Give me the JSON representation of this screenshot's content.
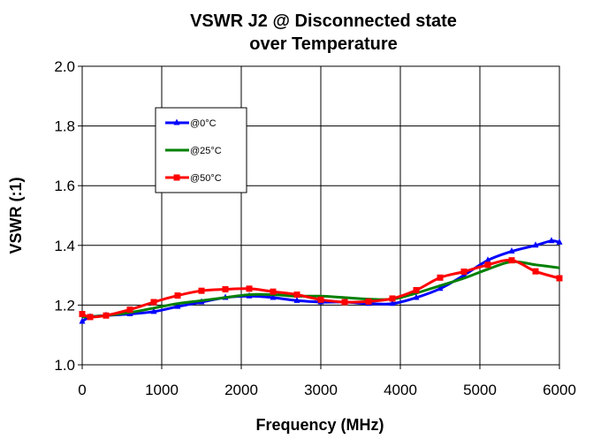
{
  "chart_data": {
    "type": "line",
    "title": [
      "VSWR J2 @ Disconnected state",
      "over Temperature"
    ],
    "xlabel": "Frequency (MHz)",
    "ylabel": "VSWR (:1)",
    "xlim": [
      0,
      6000
    ],
    "ylim": [
      1.0,
      2.0
    ],
    "xticks": [
      0,
      1000,
      2000,
      3000,
      4000,
      5000,
      6000
    ],
    "yticks": [
      "1.0",
      "1.2",
      "1.4",
      "1.6",
      "1.8",
      "2.0"
    ],
    "grid": true,
    "legend_position": "upper-left",
    "series": [
      {
        "name": "@0°C",
        "color": "#0000ff",
        "marker": "triangle",
        "x": [
          0,
          100,
          300,
          600,
          900,
          1200,
          1500,
          1800,
          2100,
          2400,
          2700,
          3000,
          3300,
          3600,
          3900,
          4200,
          4500,
          4800,
          5100,
          5400,
          5700,
          5900,
          6000
        ],
        "y": [
          1.145,
          1.16,
          1.165,
          1.17,
          1.178,
          1.195,
          1.21,
          1.225,
          1.23,
          1.225,
          1.215,
          1.21,
          1.21,
          1.205,
          1.205,
          1.225,
          1.255,
          1.3,
          1.35,
          1.38,
          1.4,
          1.415,
          1.41
        ]
      },
      {
        "name": "@25°C",
        "color": "#008000",
        "marker": "none",
        "x": [
          0,
          300,
          600,
          900,
          1200,
          1500,
          1800,
          2100,
          2400,
          2700,
          3000,
          3300,
          3600,
          3900,
          4200,
          4500,
          4800,
          5100,
          5400,
          5700,
          6000
        ],
        "y": [
          1.16,
          1.165,
          1.175,
          1.19,
          1.205,
          1.215,
          1.225,
          1.235,
          1.235,
          1.23,
          1.23,
          1.225,
          1.22,
          1.22,
          1.24,
          1.265,
          1.29,
          1.32,
          1.345,
          1.335,
          1.325
        ]
      },
      {
        "name": "@50°C",
        "color": "#ff0000",
        "marker": "square",
        "x": [
          0,
          100,
          300,
          600,
          900,
          1200,
          1500,
          1800,
          2100,
          2400,
          2700,
          3000,
          3300,
          3600,
          3900,
          4200,
          4500,
          4800,
          5100,
          5400,
          5700,
          6000
        ],
        "y": [
          1.17,
          1.16,
          1.165,
          1.185,
          1.21,
          1.232,
          1.248,
          1.253,
          1.255,
          1.245,
          1.235,
          1.218,
          1.21,
          1.212,
          1.222,
          1.25,
          1.292,
          1.312,
          1.335,
          1.35,
          1.313,
          1.29
        ]
      }
    ]
  }
}
